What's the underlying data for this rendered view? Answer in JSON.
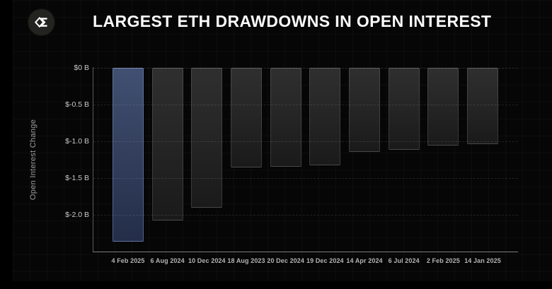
{
  "header": {
    "title": "LARGEST ETH DRAWDOWNS IN OPEN INTEREST",
    "logo_name": "sigma-diamond-logo"
  },
  "chart_data": {
    "type": "bar",
    "title": "LARGEST ETH DRAWDOWNS IN OPEN INTEREST",
    "xlabel": "",
    "ylabel": "Open Interest Change",
    "unit": "billions USD",
    "categories": [
      "4 Feb 2025",
      "6 Aug 2024",
      "10 Dec 2024",
      "18 Aug 2023",
      "20 Dec 2024",
      "19 Dec 2024",
      "14 Apr 2024",
      "6 Jul 2024",
      "2 Feb 2025",
      "14 Jan 2025"
    ],
    "values": [
      -2.37,
      -2.08,
      -1.9,
      -1.36,
      -1.35,
      -1.33,
      -1.14,
      -1.12,
      -1.06,
      -1.04
    ],
    "highlight_index": 0,
    "ytick_labels": [
      "$0 B",
      "$-0.5 B",
      "$-1.0 B",
      "$-1.5 B",
      "$-2.0 B"
    ],
    "ytick_values": [
      0,
      -0.5,
      -1.0,
      -1.5,
      -2.0
    ],
    "ylim": [
      -2.5,
      0
    ],
    "grid": "horizontal-dashed",
    "legend_position": "none",
    "colors": {
      "background": "#060606",
      "highlight_bar": "#34405e",
      "bar": "#262626",
      "title_text": "#fafafa",
      "axis_text": "#c9c9c9"
    }
  }
}
